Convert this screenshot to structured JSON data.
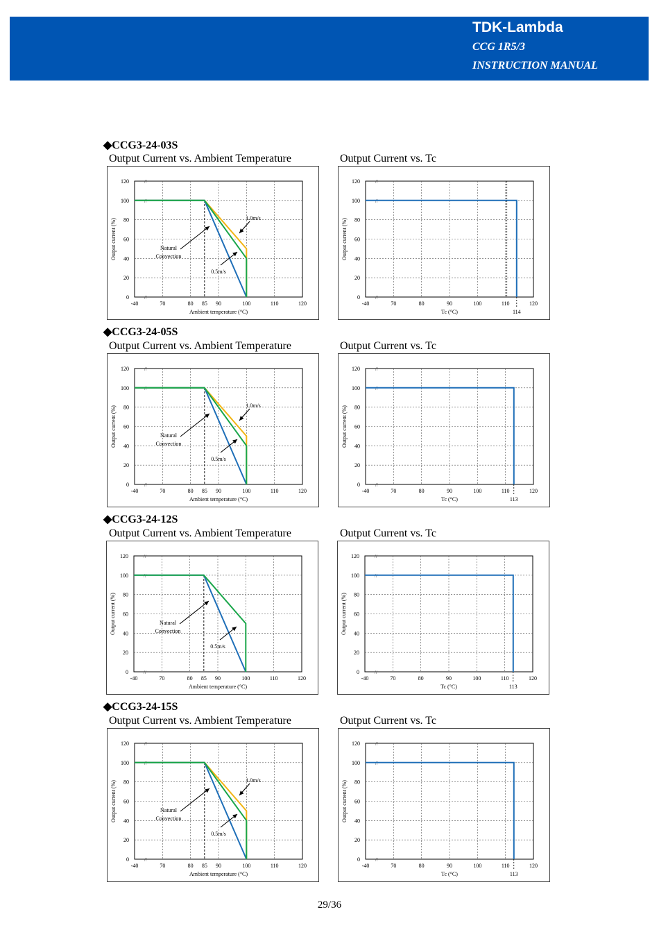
{
  "header": {
    "brand": "TDK-Lambda",
    "model": "CCG 1R5/3",
    "doc_type": "INSTRUCTION MANUAL",
    "banner_color": "#0055b3"
  },
  "colors": {
    "natural": "#1f6fb8",
    "v05": "#1aa64a",
    "v10": "#f2b515",
    "tc": "#1f6fb8"
  },
  "sections": [
    {
      "title": "◆CCG3-24-03S",
      "derating_caption": "Output Current vs. Ambient Temperature",
      "tc_caption": "Output Current vs. Tc"
    },
    {
      "title": "◆CCG3-24-05S",
      "derating_caption": "Output Current vs. Ambient Temperature",
      "tc_caption": "Output Current vs. Tc"
    },
    {
      "title": "◆CCG3-24-12S",
      "derating_caption": "Output Current vs. Ambient Temperature",
      "tc_caption": "Output Current vs. Tc"
    },
    {
      "title": "◆CCG3-24-15S",
      "derating_caption": "Output Current vs. Ambient Temperature",
      "tc_caption": "Output Current vs. Tc"
    }
  ],
  "chart_data": [
    {
      "type": "line",
      "model": "CCG3-24-03S",
      "title": "Output Current vs. Ambient Temperature",
      "xlabel": "Ambient temperature (°C)",
      "ylabel": "Output current (%)",
      "x_tick_labels": [
        "-40",
        "70",
        "80",
        "85",
        "90",
        "100",
        "110",
        "120"
      ],
      "y_ticks": [
        0,
        20,
        40,
        60,
        80,
        100,
        120
      ],
      "xlim": [
        60,
        120
      ],
      "ylim": [
        0,
        120
      ],
      "grid": true,
      "axis_break": true,
      "reference_line_x": 85,
      "series": [
        {
          "name": "Natural Convection",
          "x": [
            60,
            85,
            100,
            100
          ],
          "y": [
            100,
            100,
            0,
            0
          ]
        },
        {
          "name": "0.5m/s",
          "x": [
            60,
            85,
            100,
            100
          ],
          "y": [
            100,
            100,
            40,
            0
          ]
        },
        {
          "name": "1.0m/s",
          "x": [
            60,
            85,
            100,
            100
          ],
          "y": [
            100,
            100,
            50,
            0
          ]
        }
      ]
    },
    {
      "type": "line",
      "model": "CCG3-24-03S",
      "title": "Output Current vs. Tc",
      "xlabel": "Tc (°C)",
      "ylabel": "Output current (%)",
      "x_tick_labels": [
        "-40",
        "70",
        "80",
        "90",
        "100",
        "110",
        "120"
      ],
      "y_ticks": [
        0,
        20,
        40,
        60,
        80,
        100,
        120
      ],
      "xlim": [
        60,
        120
      ],
      "ylim": [
        0,
        120
      ],
      "grid": true,
      "axis_break": true,
      "limit_label": "114",
      "series": [
        {
          "name": "",
          "x": [
            60,
            114,
            114
          ],
          "y": [
            100,
            100,
            0
          ]
        }
      ]
    },
    {
      "type": "line",
      "model": "CCG3-24-05S",
      "title": "Output Current vs. Ambient Temperature",
      "xlabel": "Ambient temperature (°C)",
      "ylabel": "Output current (%)",
      "x_tick_labels": [
        "-40",
        "70",
        "80",
        "85",
        "90",
        "100",
        "110",
        "120"
      ],
      "y_ticks": [
        0,
        20,
        40,
        60,
        80,
        100,
        120
      ],
      "xlim": [
        60,
        120
      ],
      "ylim": [
        0,
        120
      ],
      "grid": true,
      "axis_break": true,
      "reference_line_x": 85,
      "series": [
        {
          "name": "Natural Convection",
          "x": [
            60,
            85,
            100,
            100
          ],
          "y": [
            100,
            100,
            0,
            0
          ]
        },
        {
          "name": "0.5m/s",
          "x": [
            60,
            85,
            100,
            100
          ],
          "y": [
            100,
            100,
            40,
            0
          ]
        },
        {
          "name": "1.0m/s",
          "x": [
            60,
            85,
            100,
            100
          ],
          "y": [
            100,
            100,
            50,
            0
          ]
        }
      ]
    },
    {
      "type": "line",
      "model": "CCG3-24-05S",
      "title": "Output Current vs. Tc",
      "xlabel": "Tc (°C)",
      "ylabel": "Output current (%)",
      "x_tick_labels": [
        "-40",
        "70",
        "80",
        "90",
        "100",
        "110",
        "120"
      ],
      "y_ticks": [
        0,
        20,
        40,
        60,
        80,
        100,
        120
      ],
      "xlim": [
        60,
        120
      ],
      "ylim": [
        0,
        120
      ],
      "grid": true,
      "axis_break": true,
      "limit_label": "113",
      "series": [
        {
          "name": "",
          "x": [
            60,
            113,
            113
          ],
          "y": [
            100,
            100,
            0
          ]
        }
      ]
    },
    {
      "type": "line",
      "model": "CCG3-24-12S",
      "title": "Output Current vs. Ambient Temperature",
      "xlabel": "Ambient temperature (°C)",
      "ylabel": "Output current (%)",
      "x_tick_labels": [
        "-40",
        "70",
        "80",
        "85",
        "90",
        "100",
        "110",
        "120"
      ],
      "y_ticks": [
        0,
        20,
        40,
        60,
        80,
        100,
        120
      ],
      "xlim": [
        60,
        120
      ],
      "ylim": [
        0,
        120
      ],
      "grid": true,
      "axis_break": true,
      "reference_line_x": 85,
      "series": [
        {
          "name": "Natural Convection",
          "x": [
            60,
            85,
            100,
            100
          ],
          "y": [
            100,
            100,
            0,
            0
          ]
        },
        {
          "name": "0.5m/s",
          "x": [
            60,
            85,
            100,
            100
          ],
          "y": [
            100,
            100,
            50,
            0
          ]
        }
      ]
    },
    {
      "type": "line",
      "model": "CCG3-24-12S",
      "title": "Output Current vs. Tc",
      "xlabel": "Tc (°C)",
      "ylabel": "Output current (%)",
      "x_tick_labels": [
        "-40",
        "70",
        "80",
        "90",
        "100",
        "110",
        "120"
      ],
      "y_ticks": [
        0,
        20,
        40,
        60,
        80,
        100,
        120
      ],
      "xlim": [
        60,
        120
      ],
      "ylim": [
        0,
        120
      ],
      "grid": true,
      "axis_break": true,
      "limit_label": "113",
      "series": [
        {
          "name": "",
          "x": [
            60,
            113,
            113
          ],
          "y": [
            100,
            100,
            0
          ]
        }
      ]
    },
    {
      "type": "line",
      "model": "CCG3-24-15S",
      "title": "Output Current vs. Ambient Temperature",
      "xlabel": "Ambient temperature (°C)",
      "ylabel": "Output current (%)",
      "x_tick_labels": [
        "-40",
        "70",
        "80",
        "85",
        "90",
        "100",
        "110",
        "120"
      ],
      "y_ticks": [
        0,
        20,
        40,
        60,
        80,
        100,
        120
      ],
      "xlim": [
        60,
        120
      ],
      "ylim": [
        0,
        120
      ],
      "grid": true,
      "axis_break": true,
      "reference_line_x": 85,
      "series": [
        {
          "name": "Natural Convection",
          "x": [
            60,
            85,
            100,
            100
          ],
          "y": [
            100,
            100,
            0,
            0
          ]
        },
        {
          "name": "0.5m/s",
          "x": [
            60,
            85,
            100,
            100
          ],
          "y": [
            100,
            100,
            40,
            0
          ]
        },
        {
          "name": "1.0m/s",
          "x": [
            60,
            85,
            100,
            100
          ],
          "y": [
            100,
            100,
            50,
            0
          ]
        }
      ]
    },
    {
      "type": "line",
      "model": "CCG3-24-15S",
      "title": "Output Current vs. Tc",
      "xlabel": "Tc (°C)",
      "ylabel": "Output current (%)",
      "x_tick_labels": [
        "-40",
        "70",
        "80",
        "90",
        "100",
        "110",
        "120"
      ],
      "y_ticks": [
        0,
        20,
        40,
        60,
        80,
        100,
        120
      ],
      "xlim": [
        60,
        120
      ],
      "ylim": [
        0,
        120
      ],
      "grid": true,
      "axis_break": true,
      "limit_label": "113",
      "series": [
        {
          "name": "",
          "x": [
            60,
            113,
            113
          ],
          "y": [
            100,
            100,
            0
          ]
        }
      ]
    }
  ],
  "page_number": "29/36"
}
